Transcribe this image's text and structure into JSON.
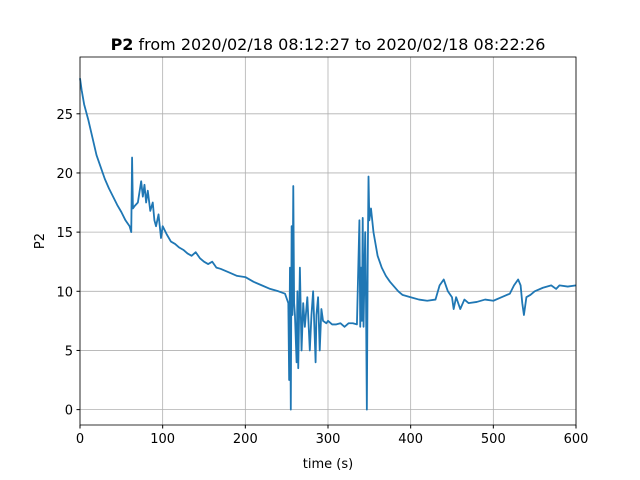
{
  "chart_data": {
    "type": "line",
    "title": {
      "bold": "P2",
      "text": "from 2020/02/18 08:12:27 to 2020/02/18 08:22:26"
    },
    "xlabel": "time (s)",
    "ylabel": "P2",
    "x": [
      0,
      2,
      5,
      10,
      15,
      20,
      25,
      30,
      35,
      40,
      45,
      50,
      55,
      60,
      62,
      63,
      64,
      66,
      70,
      74,
      76,
      78,
      80,
      82,
      85,
      88,
      90,
      92,
      95,
      98,
      100,
      105,
      110,
      115,
      120,
      125,
      130,
      135,
      140,
      145,
      150,
      155,
      160,
      165,
      170,
      180,
      190,
      200,
      210,
      220,
      230,
      240,
      248,
      252,
      253,
      254,
      255,
      256,
      257,
      258,
      259,
      260,
      262,
      263,
      264,
      266,
      268,
      270,
      272,
      275,
      278,
      280,
      282,
      285,
      286,
      288,
      290,
      292,
      294,
      298,
      300,
      305,
      310,
      315,
      320,
      325,
      330,
      335,
      338,
      339,
      340,
      341,
      342,
      343,
      345,
      346,
      347,
      348,
      349,
      350,
      352,
      355,
      360,
      365,
      370,
      375,
      380,
      385,
      390,
      400,
      410,
      420,
      430,
      435,
      440,
      445,
      450,
      452,
      455,
      460,
      465,
      470,
      480,
      490,
      500,
      510,
      520,
      525,
      530,
      533,
      535,
      537,
      540,
      545,
      550,
      560,
      570,
      576,
      580,
      590,
      600
    ],
    "values": [
      28,
      27,
      25.8,
      24.5,
      23,
      21.5,
      20.5,
      19.5,
      18.7,
      18,
      17.3,
      16.7,
      16,
      15.5,
      15,
      21.3,
      17,
      17.2,
      17.5,
      19.3,
      18,
      19,
      17.5,
      18.5,
      16.8,
      17.5,
      16,
      15.5,
      16.5,
      14.5,
      15.5,
      14.8,
      14.2,
      14,
      13.7,
      13.5,
      13.2,
      13,
      13.3,
      12.8,
      12.5,
      12.3,
      12.5,
      12,
      11.9,
      11.6,
      11.3,
      11.2,
      10.8,
      10.5,
      10.2,
      10,
      9.8,
      9,
      2.5,
      12,
      0,
      15.5,
      8,
      18.9,
      9,
      8,
      4,
      10,
      3.5,
      12,
      5,
      9,
      7,
      9.5,
      5,
      8,
      10,
      4,
      8,
      9.5,
      5,
      8.5,
      7.5,
      7.3,
      7.5,
      7.2,
      7.2,
      7.3,
      7,
      7.3,
      7.3,
      7.2,
      16,
      7,
      12,
      7.5,
      16.2,
      7,
      15,
      9,
      0,
      12,
      19.7,
      16,
      17,
      15,
      13,
      12,
      11.3,
      10.8,
      10.4,
      10,
      9.7,
      9.5,
      9.3,
      9.2,
      9.3,
      10.5,
      11,
      10,
      9.5,
      8.5,
      9.5,
      8.5,
      9.3,
      9,
      9.1,
      9.3,
      9.2,
      9.5,
      9.8,
      10.5,
      11,
      10.5,
      9,
      8,
      9.5,
      9.7,
      10,
      10.3,
      10.5,
      10.2,
      10.5,
      10.4,
      10.5
    ],
    "color": "#1f77b4",
    "xlim": [
      0,
      600
    ],
    "xticks": [
      0,
      100,
      200,
      300,
      400,
      500,
      600
    ],
    "ylim": [
      -1.3,
      29.8
    ],
    "yticks": [
      0,
      5,
      10,
      15,
      20,
      25
    ],
    "grid": true
  }
}
